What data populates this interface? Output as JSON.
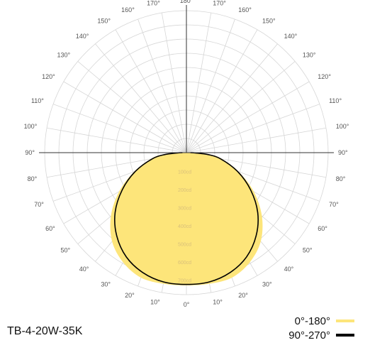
{
  "product_name": "TB-4-20W-35K",
  "chart_data": {
    "type": "polar",
    "title": "",
    "angle_labels_left": [
      "0°",
      "10°",
      "20°",
      "30°",
      "40°",
      "50°",
      "60°",
      "70°",
      "80°",
      "90°",
      "100°",
      "110°",
      "120°",
      "130°",
      "140°",
      "150°",
      "160°",
      "170°",
      "180°"
    ],
    "angle_labels_right": [
      "10°",
      "20°",
      "30°",
      "40°",
      "50°",
      "60°",
      "70°",
      "80°",
      "90°",
      "100°",
      "110°",
      "120°",
      "130°",
      "140°",
      "150°",
      "160°",
      "170°"
    ],
    "radial_labels": [
      "100cd",
      "200cd",
      "300cd",
      "400cd",
      "500cd",
      "600cd",
      "700cd"
    ],
    "radial_max": 700,
    "series": [
      {
        "name": "0°-180°",
        "color": "#fde57a",
        "style": "fill",
        "points": [
          [
            0,
            733
          ],
          [
            10,
            735
          ],
          [
            20,
            735
          ],
          [
            30,
            700
          ],
          [
            40,
            640
          ],
          [
            50,
            545
          ],
          [
            60,
            430
          ],
          [
            70,
            308
          ],
          [
            80,
            200
          ],
          [
            85,
            140
          ],
          [
            88,
            60
          ],
          [
            90,
            25
          ]
        ]
      },
      {
        "name": "90°-270°",
        "color": "#000000",
        "style": "line",
        "points": [
          [
            0,
            728
          ],
          [
            10,
            725
          ],
          [
            20,
            705
          ],
          [
            30,
            665
          ],
          [
            40,
            600
          ],
          [
            50,
            515
          ],
          [
            60,
            410
          ],
          [
            70,
            300
          ],
          [
            80,
            190
          ],
          [
            85,
            120
          ],
          [
            88,
            50
          ],
          [
            90,
            22
          ]
        ]
      }
    ],
    "legend": [
      {
        "label": "0°-180°",
        "color": "#fde57a"
      },
      {
        "label": "90°-270°",
        "color": "#000000"
      }
    ]
  }
}
